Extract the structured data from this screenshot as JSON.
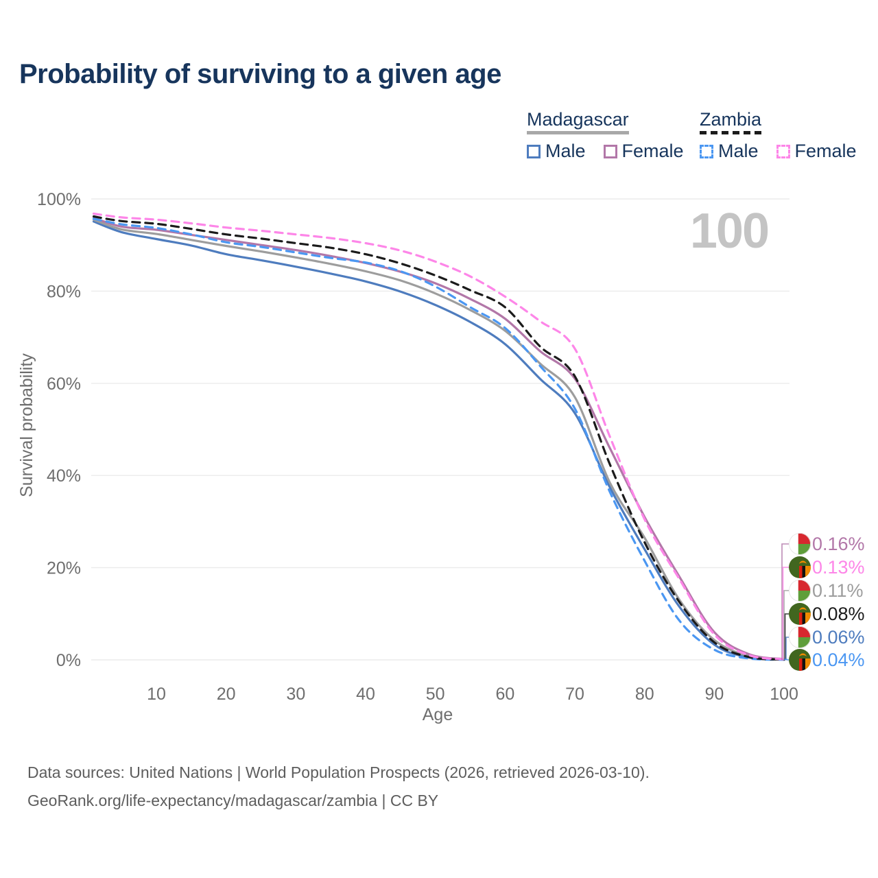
{
  "title": "Probability of surviving to a given age",
  "watermark": "100",
  "legend": {
    "groups": [
      {
        "name": "Madagascar",
        "underline_color": "#a8a8a8",
        "underline_style": "solid",
        "items": [
          {
            "label": "Male",
            "color": "#4e7cbe",
            "dashed": false
          },
          {
            "label": "Female",
            "color": "#b277a8",
            "dashed": false
          }
        ]
      },
      {
        "name": "Zambia",
        "underline_color": "#1b1b1b",
        "underline_style": "dashed",
        "items": [
          {
            "label": "Male",
            "color": "#4b97f2",
            "dashed": true
          },
          {
            "label": "Female",
            "color": "#fd86e8",
            "dashed": true
          }
        ]
      }
    ]
  },
  "chart_data": {
    "type": "line",
    "title": "Probability of surviving to a given age",
    "xlabel": "Age",
    "ylabel": "Survival probability",
    "x_ticks": [
      10,
      20,
      30,
      40,
      50,
      60,
      70,
      80,
      90,
      100
    ],
    "y_ticks": [
      "0%",
      "20%",
      "40%",
      "60%",
      "80%",
      "100%"
    ],
    "xlim": [
      0,
      100
    ],
    "ylim": [
      0,
      100
    ],
    "grid": true,
    "x": [
      1,
      5,
      10,
      15,
      20,
      25,
      30,
      35,
      40,
      45,
      50,
      55,
      60,
      65,
      70,
      75,
      80,
      85,
      90,
      95,
      100
    ],
    "series": [
      {
        "name": "Madagascar Male",
        "country": "Madagascar",
        "sex": "Male",
        "color": "#4e7cbe",
        "dashed": false,
        "flag": "madagascar",
        "end_label": "0.06%",
        "values": [
          95.1,
          92.8,
          91.3,
          89.9,
          88.0,
          86.7,
          85.3,
          83.8,
          82.1,
          79.9,
          77.0,
          73.3,
          68.5,
          61.0,
          53.5,
          37.5,
          24.0,
          11.5,
          3.3,
          0.5,
          0.06
        ]
      },
      {
        "name": "Madagascar",
        "country": "Madagascar",
        "sex": "Both",
        "color": "#9d9d9d",
        "dashed": false,
        "flag": "madagascar",
        "end_label": "0.11%",
        "values": [
          95.5,
          93.4,
          92.4,
          91.1,
          89.8,
          88.6,
          87.3,
          85.9,
          84.3,
          82.3,
          79.5,
          75.9,
          71.4,
          64.3,
          57.0,
          38.5,
          26.5,
          13.0,
          4.3,
          0.8,
          0.11
        ]
      },
      {
        "name": "Madagascar Female",
        "country": "Madagascar",
        "sex": "Female",
        "color": "#b277a8",
        "dashed": false,
        "flag": "madagascar",
        "end_label": "0.16%",
        "values": [
          95.9,
          94.0,
          93.3,
          92.2,
          91.1,
          90.0,
          88.9,
          87.6,
          86.1,
          84.2,
          81.7,
          78.3,
          74.0,
          67.0,
          61.0,
          46.0,
          31.0,
          18.0,
          6.0,
          1.2,
          0.16
        ]
      },
      {
        "name": "Zambia Male",
        "country": "Zambia",
        "sex": "Male",
        "color": "#4b97f2",
        "dashed": true,
        "flag": "zambia",
        "end_label": "0.04%",
        "values": [
          95.7,
          94.5,
          93.7,
          92.3,
          90.6,
          89.6,
          88.4,
          87.2,
          86.2,
          84.3,
          81.0,
          76.5,
          72.0,
          63.8,
          54.5,
          36.5,
          21.5,
          8.5,
          2.2,
          0.3,
          0.04
        ]
      },
      {
        "name": "Zambia",
        "country": "Zambia",
        "sex": "Both",
        "color": "#1b1b1b",
        "dashed": true,
        "flag": "zambia",
        "end_label": "0.08%",
        "values": [
          96.2,
          95.2,
          94.6,
          93.5,
          92.3,
          91.4,
          90.4,
          89.4,
          88.0,
          86.0,
          83.4,
          80.2,
          76.5,
          68.0,
          61.5,
          42.5,
          25.5,
          12.5,
          3.8,
          0.6,
          0.08
        ]
      },
      {
        "name": "Zambia Female",
        "country": "Zambia",
        "sex": "Female",
        "color": "#fd86e8",
        "dashed": true,
        "flag": "zambia",
        "end_label": "0.13%",
        "values": [
          96.8,
          96.0,
          95.5,
          94.7,
          93.8,
          93.1,
          92.3,
          91.5,
          90.4,
          88.8,
          86.4,
          83.2,
          78.8,
          73.5,
          67.5,
          48.5,
          30.5,
          17.5,
          5.5,
          1.0,
          0.13
        ]
      }
    ]
  },
  "flag_colors": {
    "madagascar": {
      "white": "#ffffff",
      "red": "#d7282f",
      "green": "#5f9e3a"
    },
    "zambia": {
      "green": "#41661f",
      "red": "#de2010",
      "black": "#121212",
      "orange": "#ef8a00"
    }
  },
  "footer": {
    "line1": "Data sources: United Nations | World Population Prospects (2026, retrieved 2026-03-10).",
    "line2": "GeoRank.org/life-expectancy/madagascar/zambia | CC BY"
  }
}
